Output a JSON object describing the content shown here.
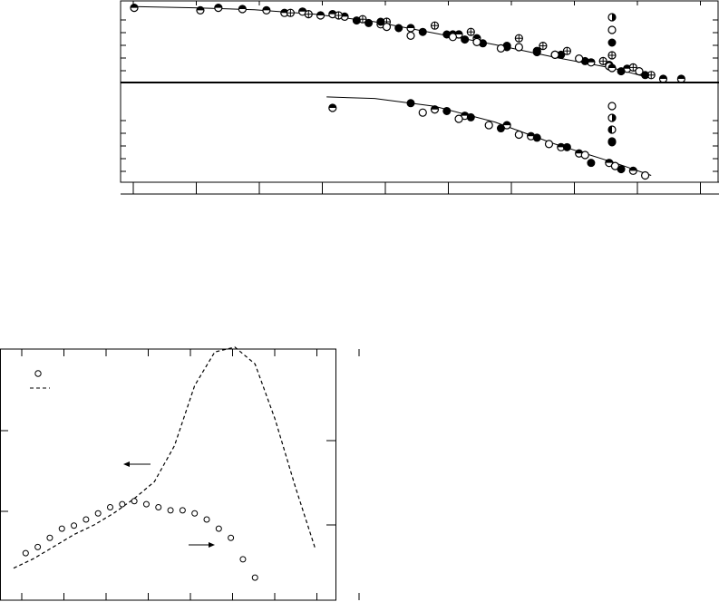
{
  "colors": {
    "ink": "#000000",
    "paper": "#ffffff"
  },
  "chart_data": [
    {
      "type": "scatter",
      "panel": "top-upper",
      "title": "",
      "xlabel": "",
      "ylabel": "",
      "xlim": [
        0,
        46
      ],
      "ylim": [
        0,
        6
      ],
      "grid": false,
      "legend_markers": [
        "half-filled-right",
        "open",
        "filled",
        "crossed",
        "half-filled-top"
      ],
      "fit_curve": {
        "x": [
          0,
          5,
          10,
          15,
          20,
          25,
          30,
          35,
          40,
          43
        ],
        "y": [
          5.7,
          5.6,
          5.45,
          5.1,
          4.5,
          3.6,
          2.7,
          1.7,
          0.8,
          0.05
        ]
      },
      "series": [
        {
          "marker": "half-filled-top",
          "x": [
            0,
            5.5,
            7,
            9,
            11,
            12.5,
            14,
            15.5,
            16.5,
            17.5,
            20.5,
            23,
            26.5,
            27,
            28.5,
            31,
            33.5,
            35,
            38,
            39.5,
            41,
            44,
            45.5
          ],
          "y": [
            5.6,
            5.4,
            5.6,
            5.5,
            5.4,
            5.2,
            5.3,
            5.0,
            5.1,
            4.9,
            4.3,
            4.0,
            3.5,
            3.5,
            3.2,
            2.6,
            2.2,
            1.9,
            1.3,
            1.1,
            0.8,
            0.0,
            0.0
          ]
        },
        {
          "marker": "crossed",
          "x": [
            13,
            14.5,
            17,
            19,
            21,
            25,
            28,
            32,
            34,
            36,
            39,
            41.5,
            43
          ],
          "y": [
            5.2,
            5.1,
            5.0,
            4.7,
            4.5,
            4.2,
            3.7,
            3.2,
            2.6,
            2.2,
            1.4,
            0.9,
            0.3
          ]
        },
        {
          "marker": "filled",
          "x": [
            18.5,
            19.5,
            20.5,
            22,
            24,
            26,
            27.5,
            29,
            31,
            33.5,
            35.5,
            37.5,
            40.5,
            42.5
          ],
          "y": [
            4.6,
            4.4,
            4.5,
            4.0,
            3.7,
            3.5,
            3.1,
            2.8,
            2.5,
            2.1,
            1.9,
            1.4,
            0.6,
            0.3
          ]
        },
        {
          "marker": "open",
          "x": [
            21,
            23,
            26.5,
            28.5,
            30.5,
            32,
            35,
            37,
            39.5,
            42
          ],
          "y": [
            4.1,
            3.4,
            3.3,
            2.9,
            2.4,
            2.5,
            1.9,
            1.6,
            1.0,
            0.6
          ]
        }
      ]
    },
    {
      "type": "scatter",
      "panel": "top-lower",
      "title": "",
      "xlabel": "",
      "ylabel": "",
      "xlim": [
        0,
        46
      ],
      "ylim": [
        0,
        6
      ],
      "grid": false,
      "legend_markers": [
        "open-lower",
        "half-filled-right",
        "half-filled-left",
        "open",
        "filled"
      ],
      "fit_curve": {
        "x": [
          16,
          20,
          25,
          30,
          35,
          40,
          43
        ],
        "y": [
          5.2,
          5.1,
          4.6,
          3.6,
          2.2,
          1.0,
          0.2
        ]
      },
      "series": [
        {
          "marker": "half-filled-top",
          "x": [
            16.5,
            25,
            27.5,
            31,
            33,
            35.5,
            37,
            39.5,
            41.5
          ],
          "y": [
            4.5,
            4.4,
            4.0,
            3.4,
            2.7,
            2.0,
            1.6,
            1.0,
            0.5
          ]
        },
        {
          "marker": "open",
          "x": [
            24,
            27,
            29.5,
            32,
            34.5,
            37.5,
            40,
            42.5
          ],
          "y": [
            4.2,
            3.8,
            3.4,
            2.8,
            2.2,
            1.5,
            0.8,
            0.2
          ]
        },
        {
          "marker": "filled",
          "x": [
            23,
            26,
            28,
            30.5,
            33.5,
            36,
            38,
            40.5
          ],
          "y": [
            4.8,
            4.3,
            3.9,
            3.2,
            2.6,
            2.0,
            1.0,
            0.6
          ]
        }
      ]
    },
    {
      "type": "line",
      "panel": "bottom",
      "title": "",
      "xlabel": "",
      "ylabel": "",
      "xlim": [
        0,
        8
      ],
      "ylim_left": [
        0,
        10
      ],
      "ylim_right": [
        0,
        8
      ],
      "grid": false,
      "legend": [
        "circle-marker",
        "dashed-line"
      ],
      "dashed_series": {
        "axis": "left",
        "x": [
          0,
          0.5,
          1,
          1.5,
          2,
          2.5,
          3,
          3.5,
          4,
          4.5,
          5,
          5.5,
          6,
          6.5,
          7,
          7.5
        ],
        "y": [
          0.2,
          0.6,
          1.1,
          1.6,
          2.0,
          2.5,
          3.1,
          3.8,
          5.3,
          7.8,
          9.2,
          9.4,
          8.7,
          6.4,
          3.6,
          1.0
        ]
      },
      "circle_series": {
        "axis": "right",
        "x": [
          0.3,
          0.6,
          0.9,
          1.2,
          1.5,
          1.8,
          2.1,
          2.4,
          2.7,
          3.0,
          3.3,
          3.6,
          3.9,
          4.2,
          4.5,
          4.8,
          5.1,
          5.4,
          5.7,
          6.0
        ],
        "y": [
          1.3,
          1.5,
          1.8,
          2.1,
          2.2,
          2.4,
          2.6,
          2.8,
          2.9,
          3.0,
          2.9,
          2.8,
          2.7,
          2.7,
          2.6,
          2.4,
          2.1,
          1.8,
          1.1,
          0.5
        ]
      }
    }
  ]
}
